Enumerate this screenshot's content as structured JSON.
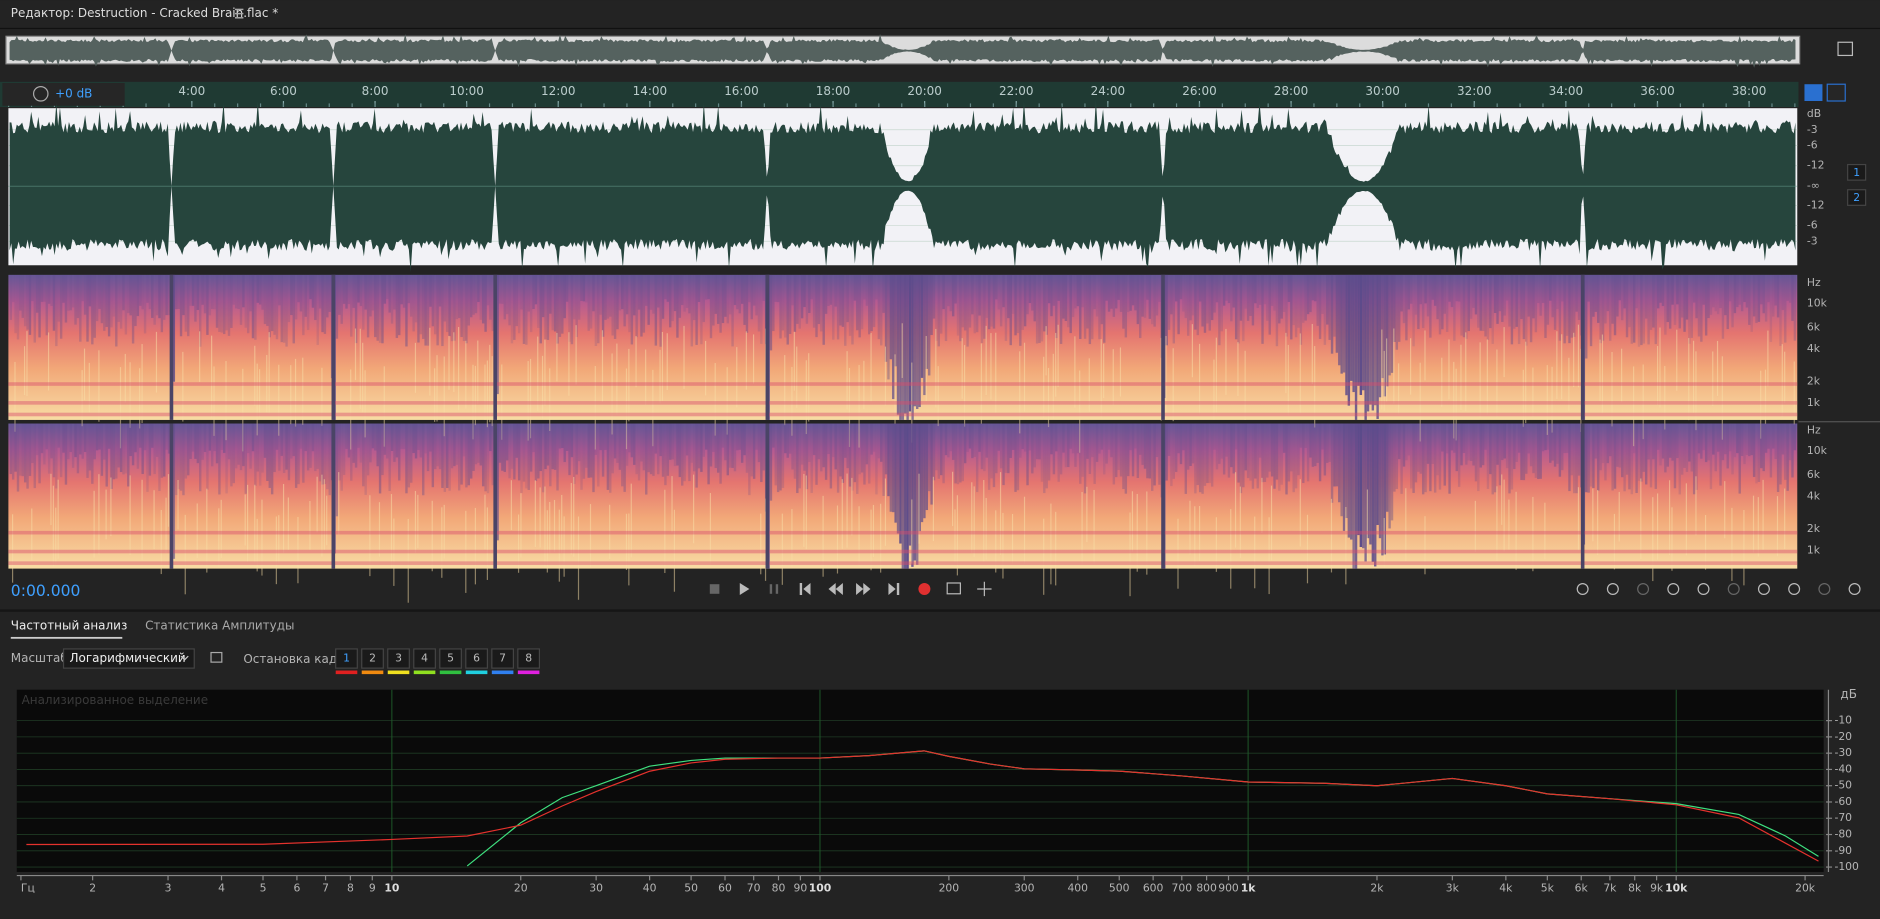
{
  "editor": {
    "title": "Редактор: Destruction - Cracked Brain.flac *",
    "ruler": [
      "4:00",
      "6:00",
      "8:00",
      "10:00",
      "12:00",
      "14:00",
      "16:00",
      "18:00",
      "20:00",
      "22:00",
      "24:00",
      "26:00",
      "28:00",
      "30:00",
      "32:00",
      "34:00",
      "36:00",
      "38:00"
    ],
    "gain": "+0 dB",
    "waveform_scale": [
      "dB",
      "-3",
      "-6",
      "-12",
      "-∞",
      "-12",
      "-6",
      "-3"
    ],
    "channels": [
      "1",
      "2"
    ],
    "spectrogram_scale": [
      "Hz",
      "10k",
      "6k",
      "4k",
      "2k",
      "1k"
    ],
    "time": "0:00.000"
  },
  "panel": {
    "tabs": [
      "Частотный анализ",
      "Статистика Амплитуды"
    ],
    "scale_label": "Масштаб:",
    "scale_value": "Логарифмический",
    "freeze_label": "Остановка кадра:",
    "frames": [
      "1",
      "2",
      "3",
      "4",
      "5",
      "6",
      "7",
      "8"
    ],
    "frame_colors": [
      "#e02020",
      "#f08a10",
      "#f0e020",
      "#90e020",
      "#30c040",
      "#20d0e0",
      "#3080f0",
      "#e020e0"
    ]
  },
  "chart_data": {
    "type": "line",
    "subtitle": "Анализированное выделение",
    "y_label": "дБ",
    "log_x": true,
    "xlim": [
      1.33,
      22100
    ],
    "ylim": [
      -103,
      9
    ],
    "xticks": [
      {
        "value": 1.36,
        "label": "Гц"
      },
      2,
      3,
      4,
      5,
      6,
      7,
      8,
      9,
      10,
      20,
      30,
      40,
      50,
      60,
      70,
      80,
      90,
      100,
      200,
      300,
      400,
      500,
      600,
      700,
      800,
      900,
      {
        "value": 1000,
        "label": "1k"
      },
      {
        "value": 2000,
        "label": "2k"
      },
      {
        "value": 3000,
        "label": "3k"
      },
      {
        "value": 4000,
        "label": "4k"
      },
      {
        "value": 5000,
        "label": "5k"
      },
      {
        "value": 6000,
        "label": "6k"
      },
      {
        "value": 7000,
        "label": "7k"
      },
      {
        "value": 8000,
        "label": "8k"
      },
      {
        "value": 9000,
        "label": "9k"
      },
      {
        "value": 10000,
        "label": "10k"
      },
      {
        "value": 20000,
        "label": "20k"
      }
    ],
    "yticks": [
      -10,
      -20,
      -30,
      -40,
      -50,
      -60,
      -70,
      -80,
      -90,
      -100
    ],
    "x": [
      1.4,
      5,
      10,
      15,
      20,
      25,
      30,
      40,
      50,
      60,
      80,
      100,
      130,
      175,
      200,
      250,
      300,
      400,
      500,
      700,
      1000,
      1500,
      2000,
      3000,
      4000,
      5000,
      7000,
      10000,
      14000,
      18000,
      21500
    ],
    "series": [
      {
        "name": "1",
        "color": "#e5322d",
        "values": [
          -86.1,
          -86,
          -83,
          -80.9,
          -74.3,
          -62.5,
          -53.6,
          -41.1,
          -36,
          -33.7,
          -33,
          -33,
          -31.5,
          -28.6,
          -32,
          -36.7,
          -39.6,
          -40.4,
          -41,
          -44,
          -47.7,
          -48.5,
          -50,
          -45.5,
          -50,
          -55,
          -58,
          -61.7,
          -69.8,
          -85.3,
          -96.4
        ]
      },
      {
        "name": "2",
        "color": "#3fe07f",
        "values": [
          null,
          null,
          null,
          -99.3,
          -72.8,
          -57.3,
          -50,
          -38,
          -34.5,
          -33,
          -33,
          -33,
          -31.5,
          -28.6,
          -32,
          -36.7,
          -39.6,
          -40.4,
          -41,
          -44,
          -47.7,
          -48.5,
          -50,
          -45.5,
          -50,
          -55,
          -58,
          -61,
          -67.6,
          -80.9,
          -93.4
        ]
      }
    ]
  }
}
